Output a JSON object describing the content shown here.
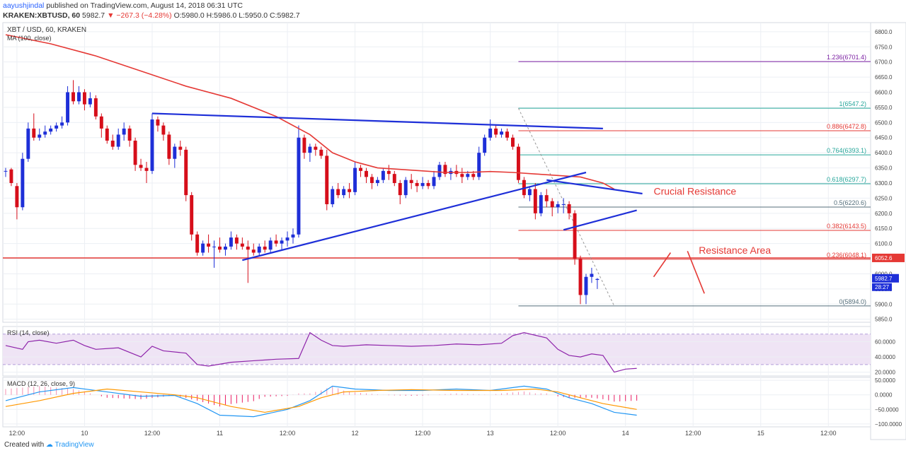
{
  "header": {
    "author": "aayushjindal",
    "published": "published on TradingView.com, August 14, 2018 06:31 UTC",
    "symbol": "KRAKEN:XBTUSD, 60",
    "last": "5982.7",
    "change": "−267.3 (−4.28%)",
    "ohlc": "O:5980.0 H:5986.0 L:5950.0 C:5982.7"
  },
  "chart_data": {
    "type": "candlestick",
    "title": "XBT / USD, 60, KRAKEN",
    "indicator_label": "MA (100, close)",
    "ylim": [
      5840,
      6830
    ],
    "price_ticks": [
      5850,
      5900,
      5950,
      6000,
      6050,
      6100,
      6150,
      6200,
      6250,
      6300,
      6350,
      6400,
      6450,
      6500,
      6550,
      6600,
      6650,
      6700,
      6750,
      6800
    ],
    "x_labels": [
      {
        "i": 2,
        "label": "12:00"
      },
      {
        "i": 14,
        "label": "10"
      },
      {
        "i": 26,
        "label": "12:00"
      },
      {
        "i": 38,
        "label": "11"
      },
      {
        "i": 50,
        "label": "12:00"
      },
      {
        "i": 62,
        "label": "12"
      },
      {
        "i": 74,
        "label": "12:00"
      },
      {
        "i": 86,
        "label": "13"
      },
      {
        "i": 98,
        "label": "12:00"
      },
      {
        "i": 110,
        "label": "14"
      },
      {
        "i": 122,
        "label": "12:00"
      },
      {
        "i": 134,
        "label": "15"
      },
      {
        "i": 146,
        "label": "12:00"
      }
    ],
    "x_range": [
      0,
      154
    ],
    "candles": [
      [
        6340,
        6350,
        6320,
        6340
      ],
      [
        6345,
        6350,
        6290,
        6300
      ],
      [
        6290,
        6300,
        6180,
        6220
      ],
      [
        6220,
        6400,
        6210,
        6380
      ],
      [
        6380,
        6500,
        6370,
        6480
      ],
      [
        6480,
        6530,
        6440,
        6450
      ],
      [
        6450,
        6480,
        6440,
        6460
      ],
      [
        6460,
        6490,
        6450,
        6470
      ],
      [
        6470,
        6490,
        6460,
        6480
      ],
      [
        6480,
        6500,
        6470,
        6490
      ],
      [
        6490,
        6520,
        6480,
        6500
      ],
      [
        6500,
        6620,
        6490,
        6600
      ],
      [
        6600,
        6640,
        6560,
        6570
      ],
      [
        6570,
        6620,
        6560,
        6600
      ],
      [
        6600,
        6610,
        6540,
        6560
      ],
      [
        6560,
        6600,
        6550,
        6580
      ],
      [
        6580,
        6590,
        6510,
        6520
      ],
      [
        6520,
        6530,
        6450,
        6480
      ],
      [
        6480,
        6490,
        6430,
        6440
      ],
      [
        6440,
        6460,
        6410,
        6420
      ],
      [
        6420,
        6480,
        6410,
        6460
      ],
      [
        6460,
        6500,
        6440,
        6480
      ],
      [
        6480,
        6490,
        6420,
        6440
      ],
      [
        6440,
        6450,
        6340,
        6360
      ],
      [
        6360,
        6380,
        6340,
        6350
      ],
      [
        6350,
        6370,
        6300,
        6340
      ],
      [
        6340,
        6530,
        6330,
        6510
      ],
      [
        6510,
        6520,
        6470,
        6490
      ],
      [
        6490,
        6500,
        6440,
        6460
      ],
      [
        6460,
        6470,
        6360,
        6380
      ],
      [
        6380,
        6430,
        6350,
        6420
      ],
      [
        6420,
        6440,
        6390,
        6410
      ],
      [
        6410,
        6420,
        6240,
        6260
      ],
      [
        6260,
        6270,
        6110,
        6130
      ],
      [
        6130,
        6140,
        6060,
        6070
      ],
      [
        6070,
        6110,
        6060,
        6100
      ],
      [
        6100,
        6130,
        6070,
        6090
      ],
      [
        6090,
        6110,
        6020,
        6090
      ],
      [
        6090,
        6120,
        6070,
        6080
      ],
      [
        6080,
        6100,
        6060,
        6090
      ],
      [
        6090,
        6140,
        6080,
        6120
      ],
      [
        6120,
        6130,
        6080,
        6100
      ],
      [
        6100,
        6120,
        6080,
        6090
      ],
      [
        6090,
        6110,
        5970,
        6080
      ],
      [
        6080,
        6100,
        6060,
        6070
      ],
      [
        6070,
        6100,
        6060,
        6090
      ],
      [
        6090,
        6110,
        6070,
        6080
      ],
      [
        6080,
        6120,
        6070,
        6110
      ],
      [
        6110,
        6130,
        6090,
        6100
      ],
      [
        6100,
        6120,
        6080,
        6110
      ],
      [
        6110,
        6140,
        6090,
        6120
      ],
      [
        6120,
        6150,
        6100,
        6130
      ],
      [
        6130,
        6490,
        6120,
        6450
      ],
      [
        6450,
        6460,
        6380,
        6400
      ],
      [
        6400,
        6430,
        6370,
        6420
      ],
      [
        6420,
        6430,
        6390,
        6410
      ],
      [
        6410,
        6420,
        6380,
        6390
      ],
      [
        6390,
        6410,
        6210,
        6230
      ],
      [
        6230,
        6290,
        6220,
        6280
      ],
      [
        6280,
        6300,
        6250,
        6260
      ],
      [
        6260,
        6290,
        6250,
        6280
      ],
      [
        6280,
        6300,
        6250,
        6270
      ],
      [
        6270,
        6370,
        6260,
        6350
      ],
      [
        6350,
        6360,
        6320,
        6340
      ],
      [
        6340,
        6350,
        6300,
        6320
      ],
      [
        6320,
        6330,
        6280,
        6300
      ],
      [
        6300,
        6320,
        6290,
        6310
      ],
      [
        6310,
        6350,
        6300,
        6340
      ],
      [
        6340,
        6360,
        6310,
        6330
      ],
      [
        6330,
        6340,
        6290,
        6300
      ],
      [
        6300,
        6310,
        6230,
        6260
      ],
      [
        6260,
        6320,
        6250,
        6310
      ],
      [
        6310,
        6330,
        6280,
        6300
      ],
      [
        6300,
        6310,
        6270,
        6290
      ],
      [
        6290,
        6320,
        6280,
        6300
      ],
      [
        6300,
        6310,
        6280,
        6290
      ],
      [
        6290,
        6340,
        6280,
        6320
      ],
      [
        6320,
        6370,
        6310,
        6360
      ],
      [
        6360,
        6370,
        6320,
        6330
      ],
      [
        6330,
        6350,
        6310,
        6340
      ],
      [
        6340,
        6360,
        6320,
        6330
      ],
      [
        6330,
        6350,
        6300,
        6320
      ],
      [
        6320,
        6340,
        6310,
        6330
      ],
      [
        6330,
        6340,
        6310,
        6320
      ],
      [
        6320,
        6420,
        6310,
        6400
      ],
      [
        6400,
        6460,
        6390,
        6450
      ],
      [
        6450,
        6510,
        6440,
        6480
      ],
      [
        6480,
        6490,
        6450,
        6460
      ],
      [
        6460,
        6480,
        6450,
        6470
      ],
      [
        6470,
        6480,
        6440,
        6450
      ],
      [
        6450,
        6460,
        6410,
        6420
      ],
      [
        6420,
        6430,
        6300,
        6310
      ],
      [
        6310,
        6320,
        6250,
        6260
      ],
      [
        6260,
        6290,
        6240,
        6280
      ],
      [
        6280,
        6300,
        6180,
        6200
      ],
      [
        6200,
        6270,
        6190,
        6260
      ],
      [
        6260,
        6280,
        6220,
        6240
      ],
      [
        6240,
        6250,
        6190,
        6220
      ],
      [
        6220,
        6240,
        6200,
        6230
      ],
      [
        6230,
        6250,
        6200,
        6230
      ],
      [
        6230,
        6240,
        6180,
        6200
      ],
      [
        6200,
        6210,
        6030,
        6050
      ],
      [
        6050,
        6060,
        5900,
        5930
      ],
      [
        5930,
        6000,
        5900,
        5990
      ],
      [
        5990,
        6020,
        5970,
        6000
      ],
      [
        5980,
        5986,
        5950,
        5983
      ]
    ],
    "ma_100": [
      [
        0,
        6790
      ],
      [
        8,
        6760
      ],
      [
        16,
        6720
      ],
      [
        24,
        6670
      ],
      [
        32,
        6620
      ],
      [
        40,
        6580
      ],
      [
        48,
        6520
      ],
      [
        54,
        6460
      ],
      [
        58,
        6400
      ],
      [
        62,
        6370
      ],
      [
        66,
        6350
      ],
      [
        70,
        6345
      ],
      [
        74,
        6340
      ],
      [
        78,
        6335
      ],
      [
        82,
        6335
      ],
      [
        86,
        6338
      ],
      [
        90,
        6335
      ],
      [
        94,
        6330
      ],
      [
        98,
        6325
      ],
      [
        102,
        6320
      ],
      [
        106,
        6300
      ],
      [
        108,
        6280
      ]
    ],
    "fibonacci": [
      {
        "level": "1.236",
        "price": 6701.4,
        "color": "#7b1fa2"
      },
      {
        "level": "1",
        "price": 6547.2,
        "color": "#26a69a"
      },
      {
        "level": "0.886",
        "price": 6472.8,
        "color": "#e53935"
      },
      {
        "level": "0.764",
        "price": 6393.1,
        "color": "#26a69a"
      },
      {
        "level": "0.618",
        "price": 6297.7,
        "color": "#26a69a"
      },
      {
        "level": "0.5",
        "price": 6220.6,
        "color": "#546e7a"
      },
      {
        "level": "0.382",
        "price": 6143.5,
        "color": "#e53935"
      },
      {
        "level": "0.236",
        "price": 6048.1,
        "color": "#e53935"
      },
      {
        "level": "0",
        "price": 5894.0,
        "color": "#546e7a"
      }
    ],
    "fib_start_i": 91,
    "horizontal_level": {
      "price": 6052.6,
      "label": "6052.6"
    },
    "last_price_label": "5982.7",
    "timer_label": "28:27",
    "trendlines": [
      {
        "from": [
          26,
          6530
        ],
        "to": [
          106,
          6480
        ],
        "color": "#1e2fd8"
      },
      {
        "from": [
          42,
          6045
        ],
        "to": [
          103,
          6335
        ],
        "color": "#1e2fd8"
      },
      {
        "from": [
          96,
          6310
        ],
        "to": [
          113,
          6265
        ],
        "color": "#1e2fd8"
      },
      {
        "from": [
          99,
          6145
        ],
        "to": [
          112,
          6210
        ],
        "color": "#1e2fd8"
      }
    ],
    "fib_drawline": {
      "from": [
        91,
        6547
      ],
      "to": [
        108,
        5894
      ]
    },
    "annotations": [
      {
        "text": "Crucial Resistance",
        "i": 115,
        "price": 6275
      },
      {
        "text": "Resistance Area",
        "i": 123,
        "price": 6080
      }
    ],
    "arrows": [
      {
        "from": [
          115,
          5990
        ],
        "to": [
          118,
          6070
        ]
      },
      {
        "from": [
          121,
          6075
        ],
        "to": [
          124,
          5935
        ]
      }
    ],
    "rsi": {
      "label": "RSI (14, close)",
      "ylim": [
        15,
        80
      ],
      "ticks": [
        20,
        40,
        60
      ],
      "tick_labels": [
        "20.0000",
        "40.0000",
        "60.0000"
      ],
      "band": [
        30,
        70
      ],
      "points": [
        [
          0,
          55
        ],
        [
          3,
          50
        ],
        [
          4,
          60
        ],
        [
          6,
          62
        ],
        [
          9,
          58
        ],
        [
          12,
          62
        ],
        [
          14,
          55
        ],
        [
          16,
          50
        ],
        [
          20,
          52
        ],
        [
          24,
          40
        ],
        [
          26,
          54
        ],
        [
          28,
          48
        ],
        [
          32,
          45
        ],
        [
          34,
          30
        ],
        [
          36,
          28
        ],
        [
          40,
          33
        ],
        [
          44,
          35
        ],
        [
          48,
          37
        ],
        [
          52,
          38
        ],
        [
          54,
          72
        ],
        [
          56,
          62
        ],
        [
          58,
          55
        ],
        [
          60,
          54
        ],
        [
          64,
          56
        ],
        [
          68,
          55
        ],
        [
          72,
          54
        ],
        [
          76,
          55
        ],
        [
          80,
          57
        ],
        [
          84,
          56
        ],
        [
          88,
          58
        ],
        [
          90,
          68
        ],
        [
          92,
          72
        ],
        [
          96,
          65
        ],
        [
          98,
          50
        ],
        [
          100,
          42
        ],
        [
          102,
          40
        ],
        [
          104,
          44
        ],
        [
          106,
          42
        ],
        [
          108,
          20
        ],
        [
          110,
          24
        ],
        [
          112,
          25
        ]
      ]
    },
    "macd": {
      "label": "MACD (12, 26, close, 9)",
      "ylim": [
        -110,
        60
      ],
      "ticks": [
        50,
        0,
        -50,
        -100
      ],
      "tick_labels": [
        "50.0000",
        "0.0000",
        "−50.0000",
        "−100.0000"
      ],
      "macd_line": [
        [
          0,
          -20
        ],
        [
          6,
          10
        ],
        [
          12,
          25
        ],
        [
          18,
          10
        ],
        [
          24,
          -5
        ],
        [
          30,
          -2
        ],
        [
          34,
          -30
        ],
        [
          38,
          -70
        ],
        [
          44,
          -75
        ],
        [
          50,
          -50
        ],
        [
          54,
          -20
        ],
        [
          58,
          30
        ],
        [
          62,
          20
        ],
        [
          68,
          15
        ],
        [
          74,
          15
        ],
        [
          80,
          20
        ],
        [
          86,
          15
        ],
        [
          92,
          30
        ],
        [
          96,
          20
        ],
        [
          100,
          -10
        ],
        [
          104,
          -30
        ],
        [
          108,
          -60
        ],
        [
          112,
          -70
        ]
      ],
      "signal_line": [
        [
          0,
          -40
        ],
        [
          6,
          -20
        ],
        [
          12,
          5
        ],
        [
          18,
          20
        ],
        [
          24,
          10
        ],
        [
          30,
          0
        ],
        [
          34,
          -10
        ],
        [
          40,
          -40
        ],
        [
          46,
          -60
        ],
        [
          52,
          -40
        ],
        [
          56,
          -10
        ],
        [
          60,
          10
        ],
        [
          66,
          15
        ],
        [
          72,
          18
        ],
        [
          80,
          15
        ],
        [
          88,
          15
        ],
        [
          94,
          20
        ],
        [
          98,
          10
        ],
        [
          102,
          -10
        ],
        [
          106,
          -30
        ],
        [
          112,
          -50
        ]
      ]
    }
  },
  "footer": {
    "created_with": "Created with",
    "brand": "TradingView"
  }
}
